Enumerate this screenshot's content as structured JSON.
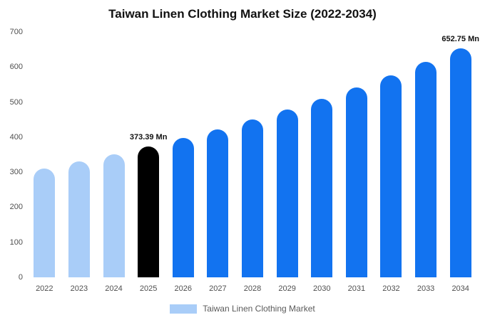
{
  "title": "Taiwan Linen Clothing Market Size (2022-2034)",
  "legend": {
    "label": "Taiwan Linen Clothing Market",
    "swatch_color": "#a9cdf8"
  },
  "colors": {
    "historical_bar": "#a9cdf8",
    "highlight_bar": "#000000",
    "forecast_bar": "#1273f0",
    "text_gray": "#4f4f4f"
  },
  "chart_data": {
    "type": "bar",
    "title": "Taiwan Linen Clothing Market Size (2022-2034)",
    "categories": [
      "2022",
      "2023",
      "2024",
      "2025",
      "2026",
      "2027",
      "2028",
      "2029",
      "2030",
      "2031",
      "2032",
      "2033",
      "2034"
    ],
    "values": [
      310,
      330,
      351,
      373.39,
      397,
      423,
      450,
      479,
      509,
      542,
      577,
      614,
      652.75
    ],
    "bar_colors": [
      "#a9cdf8",
      "#a9cdf8",
      "#a9cdf8",
      "#000000",
      "#1273f0",
      "#1273f0",
      "#1273f0",
      "#1273f0",
      "#1273f0",
      "#1273f0",
      "#1273f0",
      "#1273f0",
      "#1273f0"
    ],
    "annotations": [
      {
        "index": 3,
        "text": "373.39 Mn"
      },
      {
        "index": 12,
        "text": "652.75 Mn"
      }
    ],
    "xlabel": "",
    "ylabel": "",
    "ylim": [
      0,
      700
    ],
    "yticks": [
      0,
      100,
      200,
      300,
      400,
      500,
      600,
      700
    ],
    "grid": false,
    "legend_position": "bottom",
    "unit": "Mn"
  }
}
